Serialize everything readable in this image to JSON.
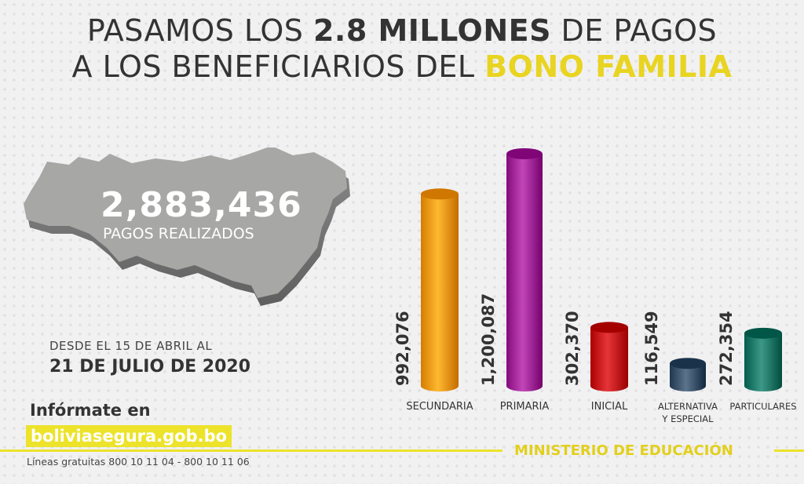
{
  "header": {
    "title_line1_a": "PASAMOS LOS ",
    "title_line1_b": "2.8 MILLONES",
    "title_line1_c": " DE PAGOS",
    "title_line2_a": "A LOS BENEFICIARIOS DEL ",
    "title_line2_b": "BONO FAMILIA"
  },
  "summary": {
    "total_value": "2,883,436",
    "total_label": "PAGOS REALIZADOS",
    "period_line1": "DESDE EL 15 DE ABRIL AL",
    "period_line2": "21 DE JULIO DE 2020"
  },
  "footer": {
    "info_heading": "Infórmate en",
    "website": "boliviasegura.gob.bo",
    "hotlines": "Líneas gratuitas 800 10 11 04 - 800 10 11 06",
    "ministry": "MINISTERIO DE EDUCACIÓN",
    "accent_color": "#ece32a"
  },
  "chart_data": {
    "type": "bar",
    "categories": [
      [
        "SECUNDARIA"
      ],
      [
        "PRIMARIA"
      ],
      [
        "INICIAL"
      ],
      [
        "ALTERNATIVA",
        "Y ESPECIAL"
      ],
      [
        "PARTICULARES"
      ]
    ],
    "values": [
      992076,
      1200087,
      302370,
      116549,
      272354
    ],
    "value_labels": [
      "992,076",
      "1,200,087",
      "302,370",
      "116,549",
      "272,354"
    ],
    "colors": [
      "#f29a12",
      "#a3289a",
      "#c8171b",
      "#3e566d",
      "#1f7a6a"
    ],
    "ylim": [
      0,
      1200087
    ]
  }
}
